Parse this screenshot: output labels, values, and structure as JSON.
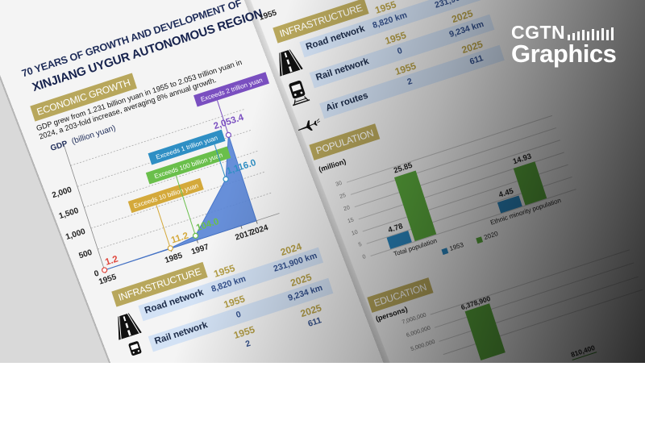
{
  "title": {
    "line1": "70 YEARS OF GROWTH AND DEVELOPMENT OF",
    "line2": "XINJIANG UYGUR AUTONOMOUS REGION"
  },
  "economic": {
    "label": "ECONOMIC GROWTH",
    "description": "GDP grew from 1.231 billion yuan in 1955 to 2.053 trillion yuan in 2024, a 203-fold increase, averaging 8% annual growth."
  },
  "infrastructure": {
    "label": "INFRASTRUCTURE",
    "rows": [
      {
        "name": "Road network",
        "icon": "road-icon",
        "years": [
          "1955",
          "2024"
        ],
        "values": [
          "8,820 km",
          "231,900 km"
        ]
      },
      {
        "name": "Rail network",
        "icon": "train-icon",
        "years": [
          "1955",
          "2025"
        ],
        "values": [
          "0",
          "9,234 km"
        ]
      },
      {
        "name": "Air routes",
        "icon": "airplane-icon",
        "years": [
          "1955",
          "2025"
        ],
        "values": [
          "2",
          "611"
        ]
      }
    ]
  },
  "population": {
    "label": "POPULATION"
  },
  "education": {
    "label": "EDUCATION"
  },
  "logo": {
    "top": "CGTN",
    "bottom": "Graphics"
  },
  "colors": {
    "section_label": "#b8a75c",
    "title": "#1d2b58",
    "gdp_area": "#5b86d6",
    "band": "#d3e2f5",
    "year_gold": "#b59f46",
    "bar_1953": "#2b86be",
    "bar_2020": "#5aa83c"
  },
  "chart_data": [
    {
      "type": "area",
      "ylabel": "GDP",
      "yunit": "(billion yuan)",
      "x": [
        1955,
        1985,
        1997,
        2017,
        2024
      ],
      "xticks": [
        "1955",
        "1985",
        "1997",
        "2017",
        "2024"
      ],
      "y": [
        1.2,
        11.2,
        104.0,
        1116.0,
        2053.4
      ],
      "point_labels": [
        "1.2",
        "11.2",
        "104.0",
        "1,116.0",
        "2,053.4"
      ],
      "point_colors": [
        "#e0463c",
        "#d4a93b",
        "#6abf4b",
        "#2f8fc4",
        "#7a4fc0"
      ],
      "yticks": [
        "0",
        "500",
        "1,000",
        "1,500",
        "2,000"
      ],
      "ytick_values": [
        0,
        500,
        1000,
        1500,
        2000
      ],
      "ylim": [
        0,
        2500
      ],
      "grid": true,
      "annotations": [
        {
          "text": "Exceeds 10 billion yuan",
          "x": 1985,
          "color": "#d4a93b"
        },
        {
          "text": "Exceeds 100 billion yuan",
          "x": 1997,
          "color": "#6abf4b"
        },
        {
          "text": "Exceeds 1 trillion yuan",
          "x": 2017,
          "color": "#2f8fc4"
        },
        {
          "text": "Exceeds 2 trillion yuan",
          "x": 2024,
          "color": "#7a4fc0"
        }
      ]
    },
    {
      "type": "bar",
      "ylabel": "(million)",
      "categories": [
        "Total population",
        "Ethnic minority population"
      ],
      "series": [
        {
          "name": "1953",
          "values": [
            4.78,
            4.45
          ],
          "labels": [
            "4.78",
            "4.45"
          ],
          "color": "#2b86be"
        },
        {
          "name": "2020",
          "values": [
            25.85,
            14.93
          ],
          "labels": [
            "25.85",
            "14.93"
          ],
          "color": "#5aa83c"
        }
      ],
      "yticks": [
        "0",
        "5",
        "10",
        "15",
        "20",
        "25",
        "30"
      ],
      "ytick_values": [
        0,
        5,
        10,
        15,
        20,
        25,
        30
      ],
      "ylim": [
        0,
        30
      ],
      "grid": true,
      "legend": "bottom"
    },
    {
      "type": "bar",
      "ylabel": "(persons)",
      "values": [
        6378900,
        810400
      ],
      "labels": [
        "6,378,900",
        "810,400"
      ],
      "colors": [
        "#5aa83c",
        "#3f8a2e"
      ],
      "yticks": [
        "7,000,000",
        "6,000,000",
        "5,000,000"
      ],
      "ytick_values": [
        7000000,
        6000000,
        5000000
      ],
      "ylim": [
        0,
        7000000
      ],
      "grid": true
    }
  ]
}
